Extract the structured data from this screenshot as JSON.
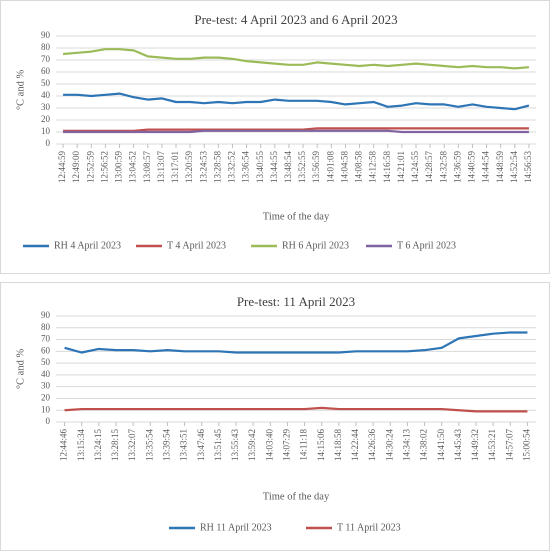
{
  "chart_data": [
    {
      "type": "line",
      "title": "Pre-test: 4 April 2023 and 6 April 2023",
      "x_label": "Time of the day",
      "y_label": "°C and %",
      "categories": [
        "12:44:59",
        "12:49:00",
        "12:52:59",
        "12:56:52",
        "13:00:59",
        "13:04:52",
        "13:08:57",
        "13:13:07",
        "13:17:01",
        "13:20:59",
        "13:24:53",
        "13:28:58",
        "13:32:52",
        "13:36:54",
        "13:40:55",
        "13:44:55",
        "13:48:54",
        "13:52:55",
        "13:56:59",
        "14:01:08",
        "14:04:58",
        "14:08:58",
        "14:12:58",
        "14:16:58",
        "14:21:01",
        "14:24:55",
        "14:28:57",
        "14:32:58",
        "14:36:59",
        "14:40:59",
        "14:44:54",
        "14:48:59",
        "14:52:54",
        "14:56:53"
      ],
      "series": [
        {
          "name": "RH 4 April 2023",
          "color": "#2e75b6",
          "values": [
            41,
            41,
            40,
            41,
            42,
            39,
            37,
            38,
            35,
            35,
            34,
            35,
            34,
            35,
            35,
            37,
            36,
            36,
            36,
            35,
            33,
            34,
            35,
            31,
            32,
            34,
            33,
            33,
            31,
            33,
            31,
            30,
            29,
            32
          ]
        },
        {
          "name": "T 4 April 2023",
          "color": "#c0504d",
          "values": [
            11,
            11,
            11,
            11,
            11,
            11,
            12,
            12,
            12,
            12,
            12,
            12,
            12,
            12,
            12,
            12,
            12,
            12,
            13,
            13,
            13,
            13,
            13,
            13,
            13,
            13,
            13,
            13,
            13,
            13,
            13,
            13,
            13,
            13
          ]
        },
        {
          "name": "RH 6 April 2023",
          "color": "#9bbb59",
          "values": [
            75,
            76,
            77,
            79,
            79,
            78,
            73,
            72,
            71,
            71,
            72,
            72,
            71,
            69,
            68,
            67,
            66,
            66,
            68,
            67,
            66,
            65,
            66,
            65,
            66,
            67,
            66,
            65,
            64,
            65,
            64,
            64,
            63,
            64
          ]
        },
        {
          "name": "T 6 April 2023",
          "color": "#8064a2",
          "values": [
            10,
            10,
            10,
            10,
            10,
            10,
            10,
            10,
            10,
            10,
            11,
            11,
            11,
            11,
            11,
            11,
            11,
            11,
            11,
            11,
            11,
            11,
            11,
            11,
            10,
            10,
            10,
            10,
            10,
            10,
            10,
            10,
            10,
            10
          ]
        }
      ],
      "ylim": [
        0,
        90
      ],
      "yticks": [
        0,
        10,
        20,
        30,
        40,
        50,
        60,
        70,
        80,
        90
      ],
      "grid": true,
      "legend": "bottom"
    },
    {
      "type": "line",
      "title": "Pre-test: 11 April 2023",
      "x_label": "Time of the day",
      "y_label": "°C and %",
      "categories": [
        "12:44:46",
        "13:15:34",
        "13:24:15",
        "13:28:15",
        "13:32:07",
        "13:35:54",
        "13:39:54",
        "13:43:51",
        "13:47:46",
        "13:51:45",
        "13:55:43",
        "13:59:42",
        "14:03:40",
        "14:07:29",
        "14:11:18",
        "14:15:06",
        "14:18:58",
        "14:22:44",
        "14:26:36",
        "14:30:24",
        "14:34:13",
        "14:38:02",
        "14:41:50",
        "14:45:43",
        "14:49:32",
        "14:53:21",
        "14:57:07",
        "15:00:54"
      ],
      "series": [
        {
          "name": "RH 11 April 2023",
          "color": "#2e75b6",
          "values": [
            63,
            59,
            62,
            61,
            61,
            60,
            61,
            60,
            60,
            60,
            59,
            59,
            59,
            59,
            59,
            59,
            59,
            60,
            60,
            60,
            60,
            61,
            63,
            71,
            73,
            75,
            76,
            76
          ]
        },
        {
          "name": "T 11 April 2023",
          "color": "#c0504d",
          "values": [
            10,
            11,
            11,
            11,
            11,
            11,
            11,
            11,
            11,
            11,
            11,
            11,
            11,
            11,
            11,
            12,
            11,
            11,
            11,
            11,
            11,
            11,
            11,
            10,
            9,
            9,
            9,
            9
          ]
        }
      ],
      "ylim": [
        0,
        90
      ],
      "yticks": [
        0,
        10,
        20,
        30,
        40,
        50,
        60,
        70,
        80,
        90
      ],
      "grid": true,
      "legend": "bottom"
    }
  ]
}
